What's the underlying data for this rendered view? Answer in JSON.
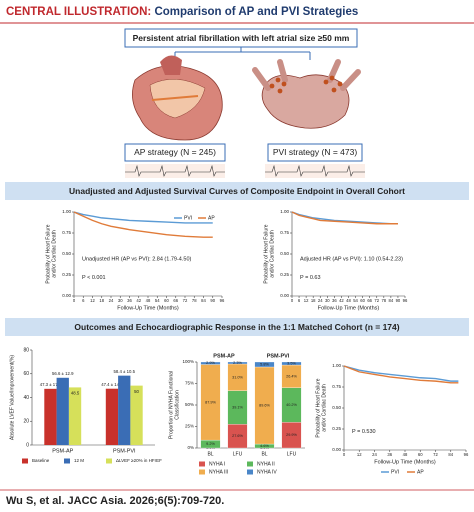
{
  "header": {
    "label": "CENTRAL ILLUSTRATION:",
    "title": "Comparison of AP and PVI Strategies"
  },
  "population": "Persistent atrial fibrillation with left atrial size ≥50 mm",
  "strategies": [
    "AP strategy (N = 245)",
    "PVI strategy (N = 473)"
  ],
  "sections": [
    "Unadjusted and Adjusted Survival Curves of Composite Endpoint in Overall Cohort",
    "Outcomes and Echocardiographic Response in the 1:1 Matched Cohort (n = 174)"
  ],
  "citation": "Wu S, et al. JACC Asia. 2026;6(5):709-720.",
  "chart_data": [
    {
      "type": "line",
      "x_label": "Follow-Up Time (Months)",
      "y_label": [
        "Probability of Heart Failure",
        "and/or Cardiac Death"
      ],
      "xlim": [
        0,
        96
      ],
      "xticks": [
        0,
        6,
        12,
        18,
        24,
        30,
        36,
        42,
        48,
        54,
        60,
        66,
        72,
        78,
        84,
        90,
        96
      ],
      "ylim": [
        0,
        1
      ],
      "yticks": [
        {
          "value": 0,
          "label": "0.00"
        },
        {
          "value": 0.25,
          "label": "0.25"
        },
        {
          "value": 0.5,
          "label": "0.50"
        },
        {
          "value": 0.75,
          "label": "0.75"
        },
        {
          "value": 1,
          "label": "1.00"
        }
      ],
      "legend": "top-right",
      "annotations": [
        "Unadjusted HR (AP vs PVI): 2.84 (1.79-4.50)",
        "P < 0.001"
      ],
      "series": [
        {
          "name": "PVI",
          "color": "#5b9bd5",
          "x": [
            0,
            6,
            12,
            18,
            24,
            36,
            48,
            60,
            72,
            84,
            90
          ],
          "values": [
            1,
            0.97,
            0.95,
            0.93,
            0.92,
            0.9,
            0.89,
            0.88,
            0.87,
            0.87,
            0.87
          ]
        },
        {
          "name": "AP",
          "color": "#e07b39",
          "x": [
            0,
            6,
            12,
            18,
            24,
            36,
            48,
            60,
            72,
            84,
            90
          ],
          "values": [
            1,
            0.95,
            0.9,
            0.86,
            0.83,
            0.79,
            0.76,
            0.73,
            0.71,
            0.7,
            0.7
          ]
        }
      ]
    },
    {
      "type": "line",
      "x_label": "Follow-Up Time (Months)",
      "y_label": [
        "Probability of Heart Failure",
        "and/or Cardiac Death"
      ],
      "xlim": [
        0,
        96
      ],
      "xticks": [
        0,
        6,
        12,
        18,
        24,
        30,
        36,
        42,
        48,
        54,
        60,
        66,
        72,
        78,
        84,
        90,
        96
      ],
      "ylim": [
        0,
        1
      ],
      "yticks": [
        {
          "value": 0,
          "label": "0.00"
        },
        {
          "value": 0.25,
          "label": "0.25"
        },
        {
          "value": 0.5,
          "label": "0.50"
        },
        {
          "value": 0.75,
          "label": "0.75"
        },
        {
          "value": 1,
          "label": "1.00"
        }
      ],
      "annotations": [
        "Adjusted HR (AP vs PVI): 1.10 (0.54-2.23)",
        "P = 0.63"
      ],
      "series": [
        {
          "color": "#5b9bd5",
          "x": [
            0,
            6,
            12,
            18,
            24,
            36,
            48,
            60,
            72,
            84,
            90
          ],
          "values": [
            1,
            0.97,
            0.95,
            0.93,
            0.92,
            0.9,
            0.89,
            0.88,
            0.87,
            0.86,
            0.86
          ]
        },
        {
          "color": "#e07b39",
          "x": [
            0,
            6,
            12,
            18,
            24,
            36,
            48,
            60,
            72,
            84,
            90
          ],
          "values": [
            1,
            0.96,
            0.94,
            0.92,
            0.9,
            0.89,
            0.88,
            0.87,
            0.86,
            0.86,
            0.86
          ]
        }
      ]
    },
    {
      "type": "bar",
      "y_label": [
        "Absolute LVEF Value/Improvement(%)"
      ],
      "categories": [
        "PSM-AP",
        "PSM-PVI"
      ],
      "ylim": [
        0,
        80
      ],
      "yticks": [
        0,
        20,
        40,
        60,
        80
      ],
      "legend": "bottom",
      "series": [
        {
          "name": "Baseline",
          "color": "#c8312b",
          "values": [
            47.3,
            47.4
          ],
          "value_labels": [
            "47.3 ± 17.5",
            "47.4 ± 14.8"
          ]
        },
        {
          "name": "12 M",
          "color": "#3a6db5",
          "values": [
            56.6,
            58.4
          ],
          "value_labels": [
            "56.6 ± 12.9",
            "58.4 ± 10.5"
          ]
        },
        {
          "name": "ΔLVEF ≥20% in HFrEF",
          "color": "#d6e05a",
          "values": [
            48.5,
            50
          ]
        }
      ]
    },
    {
      "type": "stacked",
      "y_label": [
        "Proportion of NYHA Functional",
        "Classification"
      ],
      "groups": [
        "PSM-AP",
        "PSM-PVI"
      ],
      "categories": [
        "BL",
        "LFU",
        "BL",
        "LFU"
      ],
      "ylim": [
        0,
        100
      ],
      "yticks": [
        {
          "value": 0,
          "label": "0%"
        },
        {
          "value": 25,
          "label": "25%"
        },
        {
          "value": 50,
          "label": "50%"
        },
        {
          "value": 75,
          "label": "75%"
        },
        {
          "value": 100,
          "label": "100%"
        }
      ],
      "legend": "bottom",
      "series": [
        {
          "name": "NYHA I",
          "color": "#d9534f",
          "values": [
            0,
            27.6,
            0,
            29.9
          ],
          "value_labels": [
            "0.0%",
            "27.6%",
            "0.0%",
            "29.9%"
          ]
        },
        {
          "name": "NYHA II",
          "color": "#5cb85c",
          "values": [
            9.2,
            39.1,
            4.6,
            40.2
          ],
          "value_labels": [
            "9.2%",
            "39.1%",
            "4.6%",
            "40.2%"
          ]
        },
        {
          "name": "NYHA III",
          "color": "#f0ad4e",
          "values": [
            87.9,
            31.0,
            89.6,
            26.4
          ],
          "value_labels": [
            "87.9%",
            "31.0%",
            "89.6%",
            "26.4%"
          ]
        },
        {
          "name": "NYHA IV",
          "color": "#4a86c8",
          "values": [
            2.9,
            2.3,
            5.8,
            3.5
          ],
          "value_labels": [
            "2.9%",
            "2.3%",
            "5.8%",
            "3.5%"
          ]
        }
      ]
    },
    {
      "type": "line",
      "x_label": "Follow-Up Time (Months)",
      "y_label": [
        "Probability of Heart Failure",
        "and/or Cardiac Death"
      ],
      "xlim": [
        0,
        96
      ],
      "xticks": [
        0,
        12,
        24,
        36,
        48,
        60,
        72,
        84,
        96
      ],
      "ylim": [
        0,
        1
      ],
      "yticks": [
        {
          "value": 0,
          "label": "0.00"
        },
        {
          "value": 0.25,
          "label": "0.25"
        },
        {
          "value": 0.5,
          "label": "0.50"
        },
        {
          "value": 0.75,
          "label": "0.75"
        },
        {
          "value": 1,
          "label": "1.00"
        }
      ],
      "legend": "bottom",
      "annotations": [
        "P = 0.530"
      ],
      "series": [
        {
          "name": "PVI",
          "color": "#5b9bd5",
          "x": [
            0,
            12,
            24,
            36,
            48,
            60,
            72,
            84,
            90
          ],
          "values": [
            1,
            0.95,
            0.92,
            0.9,
            0.88,
            0.86,
            0.85,
            0.82,
            0.82
          ]
        },
        {
          "name": "AP",
          "color": "#e07b39",
          "x": [
            0,
            12,
            24,
            36,
            48,
            60,
            72,
            84,
            90
          ],
          "values": [
            1,
            0.93,
            0.9,
            0.87,
            0.85,
            0.83,
            0.82,
            0.8,
            0.8
          ]
        }
      ]
    }
  ]
}
